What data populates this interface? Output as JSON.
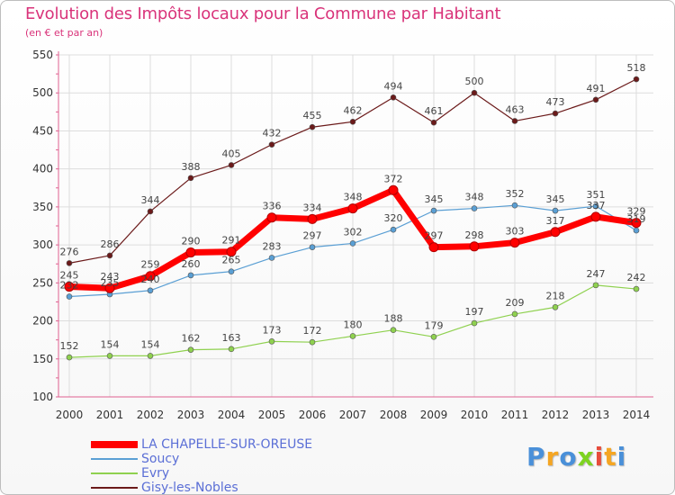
{
  "title": "Evolution des Impôts locaux pour la Commune par Habitant",
  "subtitle": "(en € et par an)",
  "brand": {
    "text": "Proxiti",
    "letters": [
      "P",
      "r",
      "o",
      "x",
      "i",
      "t",
      "i"
    ],
    "colors": [
      "#4a90d9",
      "#f5a623",
      "#4a90d9",
      "#7ed321",
      "#e74c3c",
      "#f5a623",
      "#4a90d9"
    ]
  },
  "chart_data": {
    "type": "line",
    "title": "Evolution des Impôts locaux pour la Commune par Habitant",
    "subtitle": "(en € et par an)",
    "xlabel": "",
    "ylabel": "",
    "x": [
      "2000",
      "2001",
      "2002",
      "2003",
      "2004",
      "2005",
      "2006",
      "2007",
      "2008",
      "2009",
      "2010",
      "2011",
      "2012",
      "2013",
      "2014"
    ],
    "ylim": [
      100,
      550
    ],
    "yticks": [
      100,
      150,
      200,
      250,
      300,
      350,
      400,
      450,
      500,
      550
    ],
    "grid": true,
    "legend_position": "bottom-left",
    "series": [
      {
        "name": "Gisy-les-Nobles",
        "color": "#6b1a1a",
        "width": 1.2,
        "values": [
          276,
          286,
          344,
          388,
          405,
          432,
          455,
          462,
          494,
          461,
          500,
          463,
          473,
          491,
          518
        ],
        "labels": [
          "276",
          "286",
          "344",
          "388",
          "405",
          "432",
          "455",
          "462",
          "494",
          "461",
          "500",
          "463",
          "473",
          "491",
          "518"
        ]
      },
      {
        "name": "Soucy",
        "color": "#5a9fd4",
        "width": 1.2,
        "values": [
          232,
          235,
          240,
          260,
          265,
          283,
          297,
          302,
          320,
          345,
          348,
          352,
          345,
          351,
          319
        ],
        "labels": [
          "232",
          "235",
          "240",
          "260",
          "265",
          "283",
          "297",
          "302",
          "320",
          "345",
          "348",
          "352",
          "345",
          "351",
          "319"
        ]
      },
      {
        "name": "Evry",
        "color": "#8fd14f",
        "width": 1.2,
        "values": [
          152,
          154,
          154,
          162,
          163,
          173,
          172,
          180,
          188,
          179,
          197,
          209,
          218,
          247,
          242
        ],
        "labels": [
          "152",
          "154",
          "154",
          "162",
          "163",
          "173",
          "172",
          "180",
          "188",
          "179",
          "197",
          "209",
          "218",
          "247",
          "242"
        ]
      },
      {
        "name": "LA CHAPELLE-SUR-OREUSE",
        "color": "#ff0000",
        "width": 7,
        "values": [
          245,
          243,
          259,
          290,
          291,
          336,
          334,
          348,
          372,
          297,
          298,
          303,
          317,
          337,
          329
        ],
        "labels": [
          "245",
          "243",
          "259",
          "290",
          "291",
          "336",
          "334",
          "348",
          "372",
          "297",
          "298",
          "303",
          "317",
          "337",
          "329"
        ]
      }
    ],
    "legend": [
      "LA CHAPELLE-SUR-OREUSE",
      "Soucy",
      "Evry",
      "Gisy-les-Nobles"
    ]
  }
}
